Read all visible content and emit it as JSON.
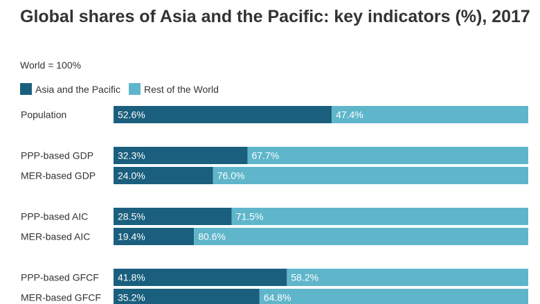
{
  "title": "Global shares of Asia and the Pacific: key indicators (%), 2017",
  "subtitle": "World = 100%",
  "colors": {
    "asia": "#1a5f7e",
    "rest": "#5fb6ca",
    "label_inside": "#ffffff",
    "category_text": "#333333"
  },
  "chart_data": {
    "type": "bar",
    "orientation": "horizontal",
    "stacked": true,
    "xlim": [
      0,
      100
    ],
    "legend": "top-left",
    "categories": [
      "Population",
      "PPP-based GDP",
      "MER-based GDP",
      "PPP-based AIC",
      "MER-based AIC",
      "PPP-based GFCF",
      "MER-based GFCF"
    ],
    "groups": [
      [
        0
      ],
      [
        1,
        2
      ],
      [
        3,
        4
      ],
      [
        5,
        6
      ]
    ],
    "series": [
      {
        "name": "Asia and the Pacific",
        "values": [
          52.6,
          32.3,
          24.0,
          28.5,
          19.4,
          41.8,
          35.2
        ]
      },
      {
        "name": "Rest of the World",
        "values": [
          47.4,
          67.7,
          76.0,
          71.5,
          80.6,
          58.2,
          64.8
        ]
      }
    ]
  }
}
